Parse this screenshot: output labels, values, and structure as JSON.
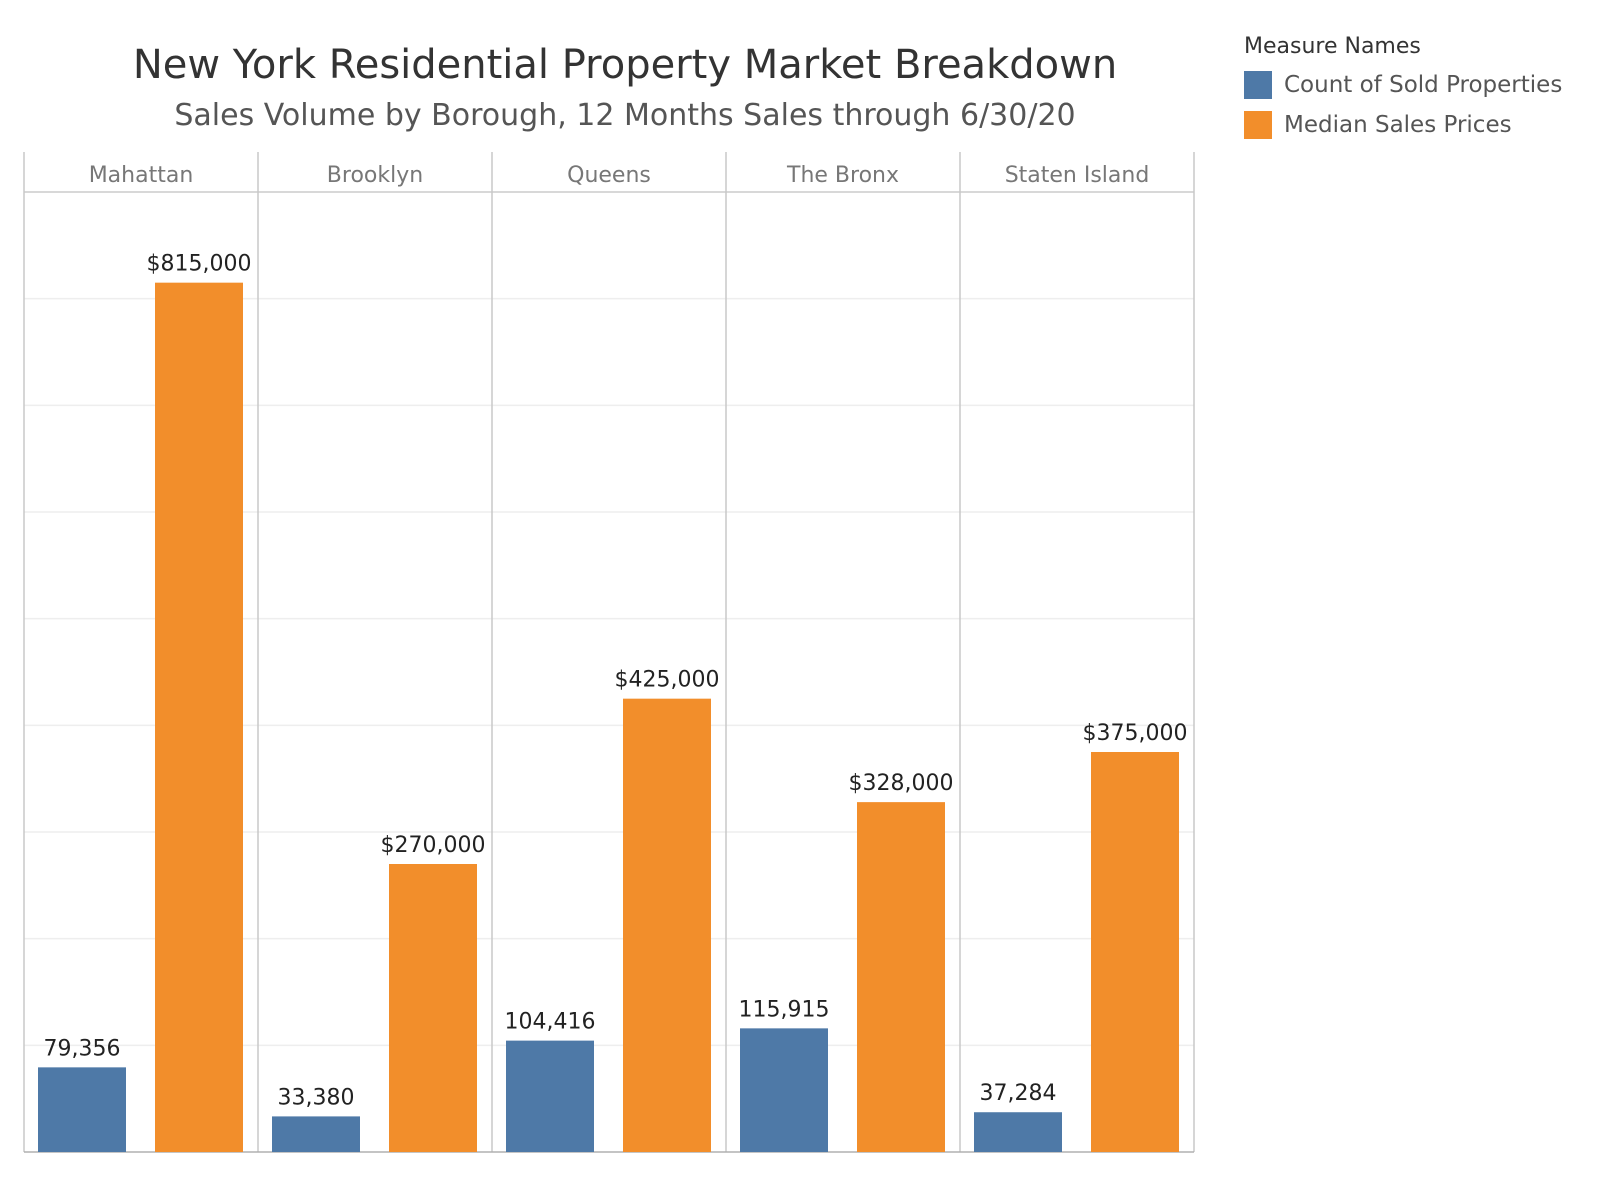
{
  "title": "New York Residential Property Market Breakdown",
  "subtitle": "Sales Volume by Borough, 12 Months Sales through 6/30/20",
  "legend": {
    "title": "Measure Names",
    "items": [
      {
        "label": "Count of Sold Properties",
        "color": "#4e79a7"
      },
      {
        "label": "Median Sales Prices",
        "color": "#f28e2b"
      }
    ]
  },
  "chart_data": {
    "type": "bar",
    "categories": [
      "Mahattan",
      "Brooklyn",
      "Queens",
      "The Bronx",
      "Staten Island"
    ],
    "series": [
      {
        "name": "Count of Sold Properties",
        "color": "#4e79a7",
        "values": [
          79356,
          33380,
          104416,
          115915,
          37284
        ],
        "labels": [
          "79,356",
          "33,380",
          "104,416",
          "115,915",
          "37,284"
        ]
      },
      {
        "name": "Median Sales Prices",
        "color": "#f28e2b",
        "values": [
          815000,
          270000,
          425000,
          328000,
          375000
        ],
        "labels": [
          "$815,000",
          "$270,000",
          "$425,000",
          "$328,000",
          "$375,000"
        ]
      }
    ],
    "ylim": [
      0,
      900000
    ],
    "grid": true,
    "legend_position": "top-right"
  }
}
